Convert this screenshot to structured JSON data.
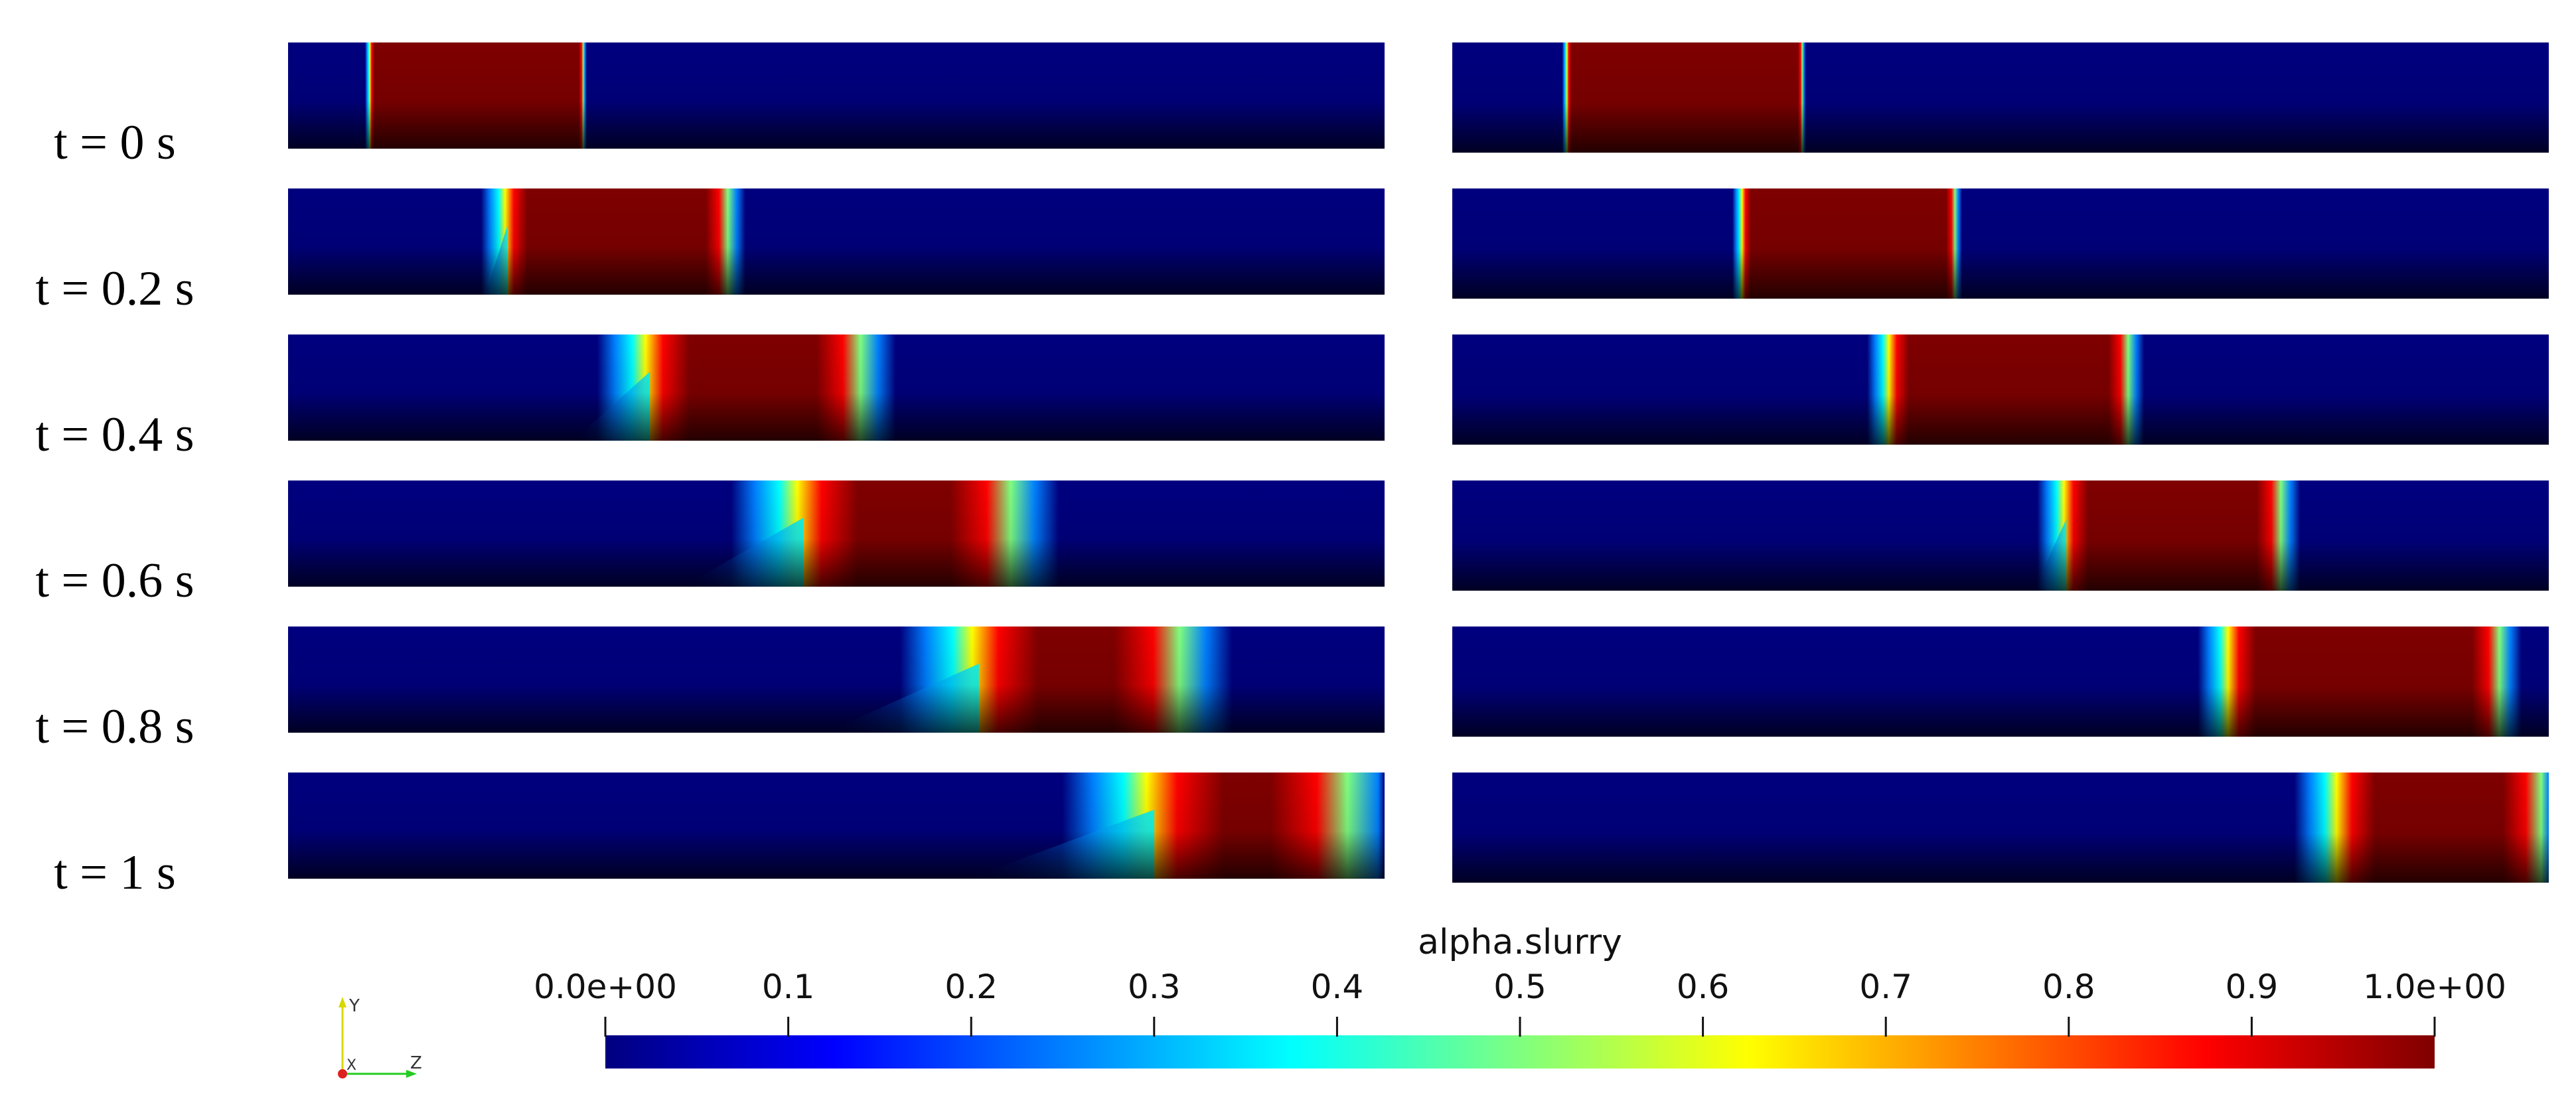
{
  "time_labels": [
    "t = 0 s",
    "t = 0.2 s",
    "t = 0.4 s",
    "t = 0.6 s",
    "t = 0.8 s",
    "t = 1 s"
  ],
  "colorbar": {
    "title": "alpha.slurry",
    "min": 0.0,
    "max": 1.0,
    "ticks": [
      0,
      0.1,
      0.2,
      0.3,
      0.4,
      0.5,
      0.6,
      0.7,
      0.8,
      0.9,
      1.0
    ],
    "tick_labels": [
      "0.0e+00",
      "0.1",
      "0.2",
      "0.3",
      "0.4",
      "0.5",
      "0.6",
      "0.7",
      "0.8",
      "0.9",
      "1.0e+00"
    ],
    "colormap": "jet",
    "colors": [
      "#00007f",
      "#0000ff",
      "#007fff",
      "#00ffff",
      "#7fff7f",
      "#ffff00",
      "#ff7f00",
      "#ff0000",
      "#7f0000"
    ]
  },
  "axes_triad": {
    "y_label": "Y",
    "x_label": "X",
    "z_label": "Z"
  },
  "panels": {
    "left": [
      {
        "time": "t = 0 s",
        "slug_rear": 0.075,
        "slug_front": 0.27,
        "skew": 0.0,
        "blur": 0.004
      },
      {
        "time": "t = 0.2 s",
        "slug_rear": 0.2,
        "slug_front": 0.405,
        "skew": 0.02,
        "blur": 0.02
      },
      {
        "time": "t = 0.4 s",
        "slug_rear": 0.33,
        "slug_front": 0.53,
        "skew": 0.07,
        "blur": 0.04
      },
      {
        "time": "t = 0.6 s",
        "slug_rear": 0.47,
        "slug_front": 0.67,
        "skew": 0.11,
        "blur": 0.055
      },
      {
        "time": "t = 0.8 s",
        "slug_rear": 0.63,
        "slug_front": 0.825,
        "skew": 0.14,
        "blur": 0.06
      },
      {
        "time": "t = 1 s",
        "slug_rear": 0.79,
        "slug_front": 0.98,
        "skew": 0.17,
        "blur": 0.07
      }
    ],
    "right": [
      {
        "time": "t = 0 s",
        "slug_rear": 0.105,
        "slug_front": 0.32,
        "skew": 0.0,
        "blur": 0.004
      },
      {
        "time": "t = 0.2 s",
        "slug_rear": 0.265,
        "slug_front": 0.46,
        "skew": 0.0,
        "blur": 0.008
      },
      {
        "time": "t = 0.4 s",
        "slug_rear": 0.4,
        "slug_front": 0.62,
        "skew": 0.0,
        "blur": 0.018
      },
      {
        "time": "t = 0.6 s",
        "slug_rear": 0.56,
        "slug_front": 0.76,
        "skew": 0.03,
        "blur": 0.022
      },
      {
        "time": "t = 0.8 s",
        "slug_rear": 0.71,
        "slug_front": 0.96,
        "skew": 0.0,
        "blur": 0.025
      },
      {
        "time": "t = 1 s",
        "slug_rear": 0.81,
        "slug_front": 1.0,
        "skew": 0.0,
        "blur": 0.035
      }
    ]
  }
}
